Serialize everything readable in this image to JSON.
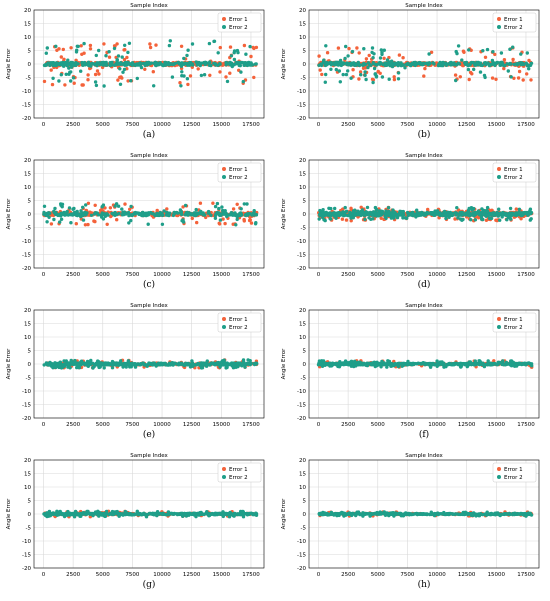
{
  "figure": {
    "colors": {
      "error1": "#f4623a",
      "error2": "#1f9e89",
      "grid": "#d9d9d9",
      "axis": "#000000"
    },
    "chart_data": [
      {
        "type": "scatter",
        "caption": "(a)",
        "title": "Sample Index",
        "ylabel": "Angle Error",
        "xlim": [
          -800,
          18600
        ],
        "ylim": [
          -20,
          20
        ],
        "xticks": [
          0,
          2500,
          5000,
          7500,
          10000,
          12500,
          15000,
          17500
        ],
        "yticks": [
          20,
          15,
          10,
          5,
          0,
          -5,
          -10,
          -15,
          -20
        ],
        "grid": true,
        "legend": "top-right",
        "series": [
          {
            "name": "Error 1",
            "color": "#f4623a",
            "amplitude": 8,
            "density": 1.0
          },
          {
            "name": "Error 2",
            "color": "#1f9e89",
            "amplitude": 9,
            "density": 1.0
          }
        ],
        "note": "dense band near 0 from 0 to 18000; scattered points within ±9"
      },
      {
        "type": "scatter",
        "caption": "(b)",
        "title": "Sample Index",
        "ylabel": "Angle Error",
        "xlim": [
          -800,
          18600
        ],
        "ylim": [
          -20,
          20
        ],
        "xticks": [
          0,
          2500,
          5000,
          7500,
          10000,
          12500,
          15000,
          17500
        ],
        "yticks": [
          20,
          15,
          10,
          5,
          0,
          -5,
          -10,
          -15,
          -20
        ],
        "grid": true,
        "legend": "top-right",
        "series": [
          {
            "name": "Error 1",
            "color": "#f4623a",
            "amplitude": 6,
            "density": 0.9
          },
          {
            "name": "Error 2",
            "color": "#1f9e89",
            "amplitude": 7,
            "density": 0.9
          }
        ],
        "note": "scattered points within ±7"
      },
      {
        "type": "scatter",
        "caption": "(c)",
        "title": "Sample Index",
        "ylabel": "Angle Error",
        "xlim": [
          -800,
          18600
        ],
        "ylim": [
          -20,
          20
        ],
        "xticks": [
          0,
          2500,
          5000,
          7500,
          10000,
          12500,
          15000,
          17500
        ],
        "yticks": [
          20,
          15,
          10,
          5,
          0,
          -5,
          -10,
          -15,
          -20
        ],
        "grid": true,
        "legend": "top-right",
        "series": [
          {
            "name": "Error 1",
            "color": "#f4623a",
            "amplitude": 4,
            "density": 0.9
          },
          {
            "name": "Error 2",
            "color": "#1f9e89",
            "amplitude": 4,
            "density": 0.9
          }
        ],
        "note": "scattered points within ±4"
      },
      {
        "type": "scatter",
        "caption": "(d)",
        "title": "Sample Index",
        "ylabel": "Angle Error",
        "xlim": [
          -800,
          18600
        ],
        "ylim": [
          -20,
          20
        ],
        "xticks": [
          0,
          2500,
          5000,
          7500,
          10000,
          12500,
          15000,
          17500
        ],
        "yticks": [
          20,
          15,
          10,
          5,
          0,
          -5,
          -10,
          -15,
          -20
        ],
        "grid": true,
        "legend": "top-right",
        "series": [
          {
            "name": "Error 1",
            "color": "#f4623a",
            "amplitude": 2.5,
            "density": 1.3
          },
          {
            "name": "Error 2",
            "color": "#1f9e89",
            "amplitude": 2.5,
            "density": 1.6
          }
        ],
        "note": "dense scatter within ±3"
      },
      {
        "type": "scatter",
        "caption": "(e)",
        "title": "Sample Index",
        "ylabel": "Angle Error",
        "xlim": [
          -800,
          18600
        ],
        "ylim": [
          -20,
          20
        ],
        "xticks": [
          0,
          2500,
          5000,
          7500,
          10000,
          12500,
          15000,
          17500
        ],
        "yticks": [
          20,
          15,
          10,
          5,
          0,
          -5,
          -10,
          -15,
          -20
        ],
        "grid": true,
        "legend": "top-right",
        "series": [
          {
            "name": "Error 1",
            "color": "#f4623a",
            "amplitude": 1.5,
            "density": 0.6
          },
          {
            "name": "Error 2",
            "color": "#1f9e89",
            "amplitude": 1.5,
            "density": 1.4
          }
        ],
        "note": "mostly within ±2, a few up to ±4"
      },
      {
        "type": "scatter",
        "caption": "(f)",
        "title": "Sample Index",
        "ylabel": "Angle Error",
        "xlim": [
          -800,
          18600
        ],
        "ylim": [
          -20,
          20
        ],
        "xticks": [
          0,
          2500,
          5000,
          7500,
          10000,
          12500,
          15000,
          17500
        ],
        "yticks": [
          20,
          15,
          10,
          5,
          0,
          -5,
          -10,
          -15,
          -20
        ],
        "grid": true,
        "legend": "top-right",
        "series": [
          {
            "name": "Error 1",
            "color": "#f4623a",
            "amplitude": 1.2,
            "density": 0.5
          },
          {
            "name": "Error 2",
            "color": "#1f9e89",
            "amplitude": 1.2,
            "density": 1.4
          }
        ],
        "note": "mostly within ±1.5"
      },
      {
        "type": "scatter",
        "caption": "(g)",
        "title": "Sample Index",
        "ylabel": "Angle Error",
        "xlim": [
          -800,
          18600
        ],
        "ylim": [
          -20,
          20
        ],
        "xticks": [
          0,
          2500,
          5000,
          7500,
          10000,
          12500,
          15000,
          17500
        ],
        "yticks": [
          20,
          15,
          10,
          5,
          0,
          -5,
          -10,
          -15,
          -20
        ],
        "grid": true,
        "legend": "top-right",
        "series": [
          {
            "name": "Error 1",
            "color": "#f4623a",
            "amplitude": 1.0,
            "density": 0.5
          },
          {
            "name": "Error 2",
            "color": "#1f9e89",
            "amplitude": 1.0,
            "density": 1.4
          }
        ],
        "note": "mostly within ±1, one point near 4 at ~16500"
      },
      {
        "type": "scatter",
        "caption": "(h)",
        "title": "Sample Index",
        "ylabel": "Angle Error",
        "xlim": [
          -800,
          18600
        ],
        "ylim": [
          -20,
          20
        ],
        "xticks": [
          0,
          2500,
          5000,
          7500,
          10000,
          12500,
          15000,
          17500
        ],
        "yticks": [
          20,
          15,
          10,
          5,
          0,
          -5,
          -10,
          -15,
          -20
        ],
        "grid": true,
        "legend": "top-right",
        "series": [
          {
            "name": "Error 1",
            "color": "#f4623a",
            "amplitude": 0.8,
            "density": 0.4
          },
          {
            "name": "Error 2",
            "color": "#1f9e89",
            "amplitude": 0.8,
            "density": 1.2
          }
        ],
        "note": "mostly within ±1"
      }
    ]
  }
}
